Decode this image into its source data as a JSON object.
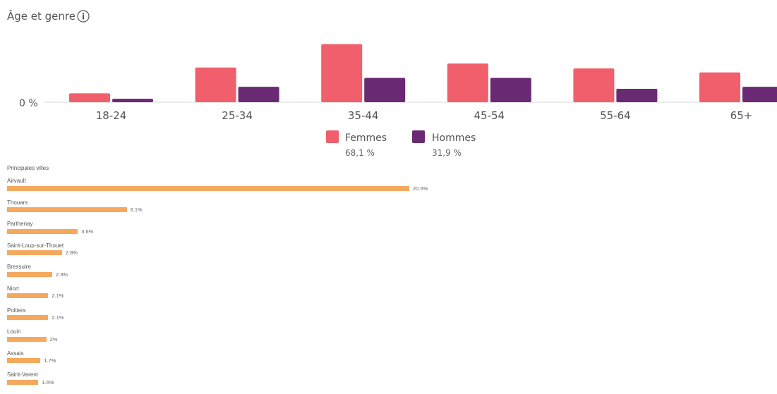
{
  "chart_data": [
    {
      "type": "bar",
      "title": "Âge et genre",
      "zero_label": "0 %",
      "categories": [
        "18-24",
        "25-34",
        "35-44",
        "45-54",
        "55-64",
        "65+"
      ],
      "series": [
        {
          "name": "Femmes",
          "total": "68,1 %",
          "color": "#f05f6b",
          "values": [
            1.8,
            7.0,
            11.7,
            7.8,
            6.8,
            6.0
          ]
        },
        {
          "name": "Hommes",
          "total": "31,9 %",
          "color": "#6a2a73",
          "values": [
            0.7,
            3.1,
            4.9,
            4.9,
            2.7,
            3.1
          ]
        }
      ],
      "ylim": [
        0,
        12.5
      ],
      "grid": false,
      "legend": "bottom-center"
    },
    {
      "type": "bar",
      "orientation": "horizontal",
      "title": "Principales villes",
      "color": "#f4a95f",
      "categories": [
        "Airvault",
        "Thouars",
        "Parthenay",
        "Saint-Loup-sur-Thouet",
        "Bressuire",
        "Niort",
        "Poitiers",
        "Louin",
        "Assais",
        "Saint-Varent"
      ],
      "values": [
        20.5,
        6.1,
        3.6,
        2.8,
        2.3,
        2.1,
        2.1,
        2.0,
        1.7,
        1.6
      ],
      "value_labels": [
        "20.5%",
        "6.1%",
        "3.6%",
        "2.8%",
        "2.3%",
        "2.1%",
        "2.1%",
        "2%",
        "1.7%",
        "1.6%"
      ],
      "xlim": [
        0,
        20.5
      ]
    }
  ]
}
